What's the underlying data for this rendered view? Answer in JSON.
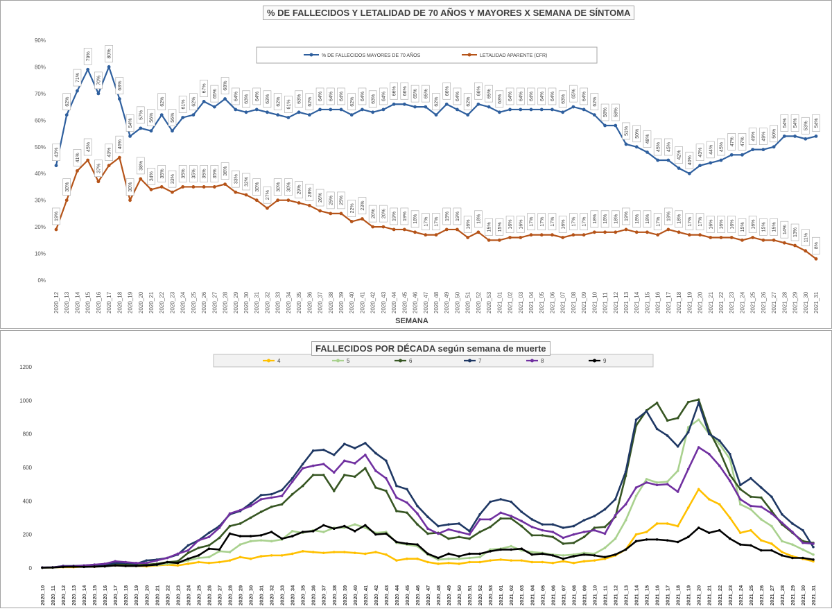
{
  "colors": {
    "pct_series": "#2e5f9e",
    "cfr_series": "#b55318",
    "d4": "#ffc000",
    "d5": "#a9d18e",
    "d6": "#375623",
    "d7": "#1f3864",
    "d8": "#7030a0",
    "d9": "#000000"
  },
  "chart_data": [
    {
      "type": "line",
      "title": "% DE FALLECIDOS Y LETALIDAD DE 70 AÑOS Y MAYORES X SEMANA DE SÍNTOMA",
      "xlabel": "SEMANA",
      "ylabel": "",
      "ylim": [
        0,
        90
      ],
      "yticks": [
        "0%",
        "10%",
        "20%",
        "30%",
        "40%",
        "50%",
        "60%",
        "70%",
        "80%",
        "90%"
      ],
      "grid": false,
      "legend_position": "top",
      "categories": [
        "2020_12",
        "2020_13",
        "2020_14",
        "2020_15",
        "2020_16",
        "2020_17",
        "2020_18",
        "2020_19",
        "2020_20",
        "2020_21",
        "2020_22",
        "2020_23",
        "2020_24",
        "2020_25",
        "2020_26",
        "2020_27",
        "2020_28",
        "2020_29",
        "2020_30",
        "2020_31",
        "2020_32",
        "2020_33",
        "2020_34",
        "2020_35",
        "2020_36",
        "2020_37",
        "2020_38",
        "2020_39",
        "2020_40",
        "2020_41",
        "2020_42",
        "2020_43",
        "2020_44",
        "2020_45",
        "2020_46",
        "2020_47",
        "2020_48",
        "2020_49",
        "2020_50",
        "2020_51",
        "2020_52",
        "2020_53",
        "2021_01",
        "2021_02",
        "2021_03",
        "2021_04",
        "2021_05",
        "2021_06",
        "2021_07",
        "2021_08",
        "2021_09",
        "2021_10",
        "2021_11",
        "2021_12",
        "2021_13",
        "2021_14",
        "2021_15",
        "2021_16",
        "2021_17",
        "2021_18",
        "2021_19",
        "2021_20",
        "2021_21",
        "2021_22",
        "2021_23",
        "2021_24",
        "2021_25",
        "2021_26",
        "2021_27",
        "2021_28",
        "2021_29",
        "2021_30",
        "2021_31"
      ],
      "series": [
        {
          "name": "% DE FALLECIDOS MAYORES DE 70 AÑOS",
          "values": [
            43,
            62,
            71,
            79,
            70,
            80,
            68,
            54,
            57,
            56,
            62,
            56,
            61,
            62,
            67,
            65,
            68,
            64,
            63,
            64,
            63,
            62,
            61,
            63,
            62,
            64,
            64,
            64,
            62,
            64,
            63,
            64,
            66,
            66,
            65,
            65,
            62,
            66,
            64,
            62,
            66,
            65,
            63,
            64,
            64,
            64,
            64,
            64,
            63,
            65,
            64,
            62,
            58,
            58,
            51,
            50,
            48,
            45,
            45,
            42,
            40,
            43,
            44,
            45,
            47,
            47,
            49,
            49,
            50,
            54,
            54,
            53,
            54
          ],
          "labels": [
            "43%",
            "62%",
            "71%",
            "79%",
            "70%",
            "80%",
            "68%",
            "54%",
            "57%",
            "56%",
            "62%",
            "56%",
            "61%",
            "62%",
            "67%",
            "65%",
            "68%",
            "64%",
            "63%",
            "64%",
            "63%",
            "62%",
            "61%",
            "63%",
            "62%",
            "64%",
            "64%",
            "64%",
            "62%",
            "64%",
            "63%",
            "64%",
            "66%",
            "66%",
            "65%",
            "65%",
            "62%",
            "66%",
            "64%",
            "62%",
            "66%",
            "65%",
            "63%",
            "64%",
            "64%",
            "64%",
            "64%",
            "64%",
            "63%",
            "65%",
            "64%",
            "62%",
            "58%",
            "58%",
            "51%",
            "50%",
            "48%",
            "45%",
            "45%",
            "42%",
            "40%",
            "43%",
            "44%",
            "45%",
            "47%",
            "47%",
            "49%",
            "49%",
            "50%",
            "54%",
            "54%",
            "53%",
            "54%"
          ]
        },
        {
          "name": "LETALIDAD APARENTE (CFR)",
          "values": [
            19,
            30,
            41,
            45,
            37,
            43,
            46,
            30,
            38,
            34,
            35,
            33,
            35,
            35,
            35,
            35,
            36,
            33,
            32,
            30,
            27,
            30,
            30,
            29,
            28,
            26,
            25,
            25,
            22,
            23,
            20,
            20,
            19,
            19,
            18,
            17,
            17,
            19,
            19,
            16,
            18,
            15,
            15,
            16,
            16,
            17,
            17,
            17,
            16,
            17,
            17,
            18,
            18,
            18,
            19,
            18,
            18,
            17,
            19,
            18,
            17,
            17,
            16,
            16,
            16,
            15,
            16,
            15,
            15,
            14,
            13,
            11,
            8
          ],
          "labels": [
            "19%",
            "30%",
            "41%",
            "45%",
            "37%",
            "43%",
            "46%",
            "30%",
            "38%",
            "34%",
            "35%",
            "33%",
            "35%",
            "35%",
            "35%",
            "35%",
            "36%",
            "33%",
            "32%",
            "30%",
            "27%",
            "30%",
            "30%",
            "29%",
            "28%",
            "26%",
            "25%",
            "25%",
            "22%",
            "23%",
            "20%",
            "20%",
            "19%",
            "19%",
            "18%",
            "17%",
            "17%",
            "19%",
            "19%",
            "16%",
            "18%",
            "15%",
            "15%",
            "16%",
            "16%",
            "17%",
            "17%",
            "17%",
            "16%",
            "17%",
            "17%",
            "18%",
            "18%",
            "18%",
            "19%",
            "18%",
            "18%",
            "17%",
            "19%",
            "18%",
            "17%",
            "17%",
            "16%",
            "16%",
            "16%",
            "15%",
            "16%",
            "15%",
            "15%",
            "14%",
            "13%",
            "11%",
            "8%"
          ]
        }
      ]
    },
    {
      "type": "line",
      "title": "FALLECIDOS POR DÉCADA según semana de muerte",
      "xlabel": "",
      "ylabel": "",
      "ylim": [
        0,
        1200
      ],
      "yticks": [
        "0",
        "200",
        "400",
        "600",
        "800",
        "1000",
        "1200"
      ],
      "grid": false,
      "legend_position": "top",
      "categories": [
        "2020_10",
        "2020_11",
        "2020_12",
        "2020_13",
        "2020_14",
        "2020_15",
        "2020_16",
        "2020_17",
        "2020_18",
        "2020_19",
        "2020_20",
        "2020_21",
        "2020_22",
        "2020_23",
        "2020_24",
        "2020_25",
        "2020_26",
        "2020_27",
        "2020_28",
        "2020_29",
        "2020_30",
        "2020_31",
        "2020_32",
        "2020_33",
        "2020_34",
        "2020_35",
        "2020_36",
        "2020_37",
        "2020_38",
        "2020_39",
        "2020_40",
        "2020_41",
        "2020_42",
        "2020_43",
        "2020_44",
        "2020_45",
        "2020_46",
        "2020_47",
        "2020_48",
        "2020_49",
        "2020_50",
        "2020_51",
        "2020_52",
        "2020_53",
        "2021_01",
        "2021_02",
        "2021_03",
        "2021_04",
        "2021_05",
        "2021_06",
        "2021_07",
        "2021_08",
        "2021_09",
        "2021_10",
        "2021_11",
        "2021_12",
        "2021_13",
        "2021_14",
        "2021_15",
        "2021_16",
        "2021_17",
        "2021_18",
        "2021_19",
        "2021_20",
        "2021_21",
        "2021_22",
        "2021_23",
        "2021_24",
        "2021_25",
        "2021_26",
        "2021_27",
        "2021_28",
        "2021_29",
        "2021_30",
        "2021_31"
      ],
      "series": [
        {
          "name": "4",
          "values": [
            2,
            3,
            5,
            5,
            8,
            8,
            12,
            15,
            13,
            12,
            10,
            15,
            20,
            15,
            25,
            35,
            30,
            35,
            45,
            65,
            55,
            70,
            75,
            75,
            85,
            100,
            95,
            90,
            95,
            95,
            90,
            85,
            95,
            80,
            45,
            55,
            55,
            35,
            25,
            30,
            25,
            35,
            35,
            45,
            50,
            45,
            45,
            35,
            35,
            30,
            40,
            30,
            40,
            45,
            55,
            75,
            110,
            200,
            215,
            265,
            265,
            250,
            360,
            470,
            410,
            380,
            300,
            210,
            225,
            165,
            145,
            95,
            70,
            55,
            40
          ]
        },
        {
          "name": "5",
          "values": [
            2,
            3,
            7,
            8,
            10,
            12,
            12,
            18,
            15,
            15,
            15,
            18,
            25,
            30,
            45,
            60,
            65,
            100,
            95,
            140,
            160,
            165,
            160,
            170,
            220,
            210,
            225,
            215,
            240,
            240,
            260,
            240,
            210,
            215,
            150,
            140,
            130,
            80,
            50,
            55,
            55,
            60,
            65,
            110,
            115,
            130,
            105,
            95,
            90,
            80,
            75,
            80,
            90,
            85,
            120,
            175,
            285,
            430,
            530,
            510,
            515,
            580,
            840,
            885,
            800,
            740,
            650,
            380,
            350,
            290,
            250,
            160,
            140,
            110,
            80
          ]
        },
        {
          "name": "6",
          "values": [
            3,
            4,
            10,
            10,
            12,
            15,
            15,
            20,
            20,
            18,
            20,
            25,
            35,
            40,
            90,
            120,
            135,
            180,
            250,
            265,
            300,
            335,
            365,
            380,
            440,
            490,
            555,
            555,
            460,
            555,
            545,
            595,
            480,
            460,
            340,
            330,
            260,
            205,
            210,
            175,
            185,
            175,
            215,
            245,
            295,
            295,
            250,
            195,
            195,
            185,
            145,
            150,
            185,
            240,
            245,
            305,
            550,
            850,
            940,
            985,
            880,
            895,
            990,
            1005,
            820,
            700,
            555,
            470,
            425,
            420,
            340,
            260,
            210,
            160,
            150
          ]
        },
        {
          "name": "7",
          "values": [
            3,
            4,
            12,
            12,
            15,
            20,
            18,
            30,
            30,
            25,
            45,
            50,
            60,
            80,
            135,
            165,
            210,
            250,
            320,
            340,
            385,
            435,
            440,
            465,
            535,
            620,
            700,
            705,
            675,
            740,
            715,
            745,
            685,
            640,
            490,
            470,
            370,
            305,
            250,
            260,
            265,
            220,
            320,
            395,
            410,
            395,
            335,
            290,
            260,
            260,
            240,
            250,
            285,
            310,
            350,
            410,
            575,
            885,
            935,
            830,
            790,
            725,
            810,
            985,
            800,
            760,
            680,
            495,
            535,
            480,
            425,
            320,
            265,
            225,
            125
          ]
        },
        {
          "name": "8",
          "values": [
            3,
            4,
            10,
            10,
            15,
            20,
            25,
            40,
            35,
            30,
            30,
            45,
            60,
            85,
            105,
            165,
            185,
            240,
            325,
            345,
            370,
            410,
            420,
            430,
            515,
            595,
            610,
            620,
            570,
            640,
            625,
            675,
            580,
            535,
            420,
            390,
            325,
            235,
            205,
            230,
            215,
            200,
            290,
            290,
            330,
            310,
            280,
            245,
            225,
            215,
            180,
            200,
            215,
            225,
            205,
            315,
            380,
            480,
            510,
            495,
            500,
            455,
            590,
            720,
            680,
            610,
            520,
            410,
            370,
            365,
            325,
            270,
            215,
            150,
            145
          ]
        },
        {
          "name": "9",
          "values": [
            2,
            3,
            7,
            8,
            7,
            8,
            10,
            15,
            12,
            12,
            15,
            20,
            35,
            30,
            55,
            75,
            115,
            110,
            205,
            190,
            190,
            195,
            215,
            175,
            190,
            215,
            220,
            255,
            235,
            250,
            220,
            255,
            200,
            205,
            155,
            145,
            140,
            85,
            60,
            85,
            70,
            85,
            85,
            100,
            110,
            110,
            115,
            80,
            85,
            75,
            55,
            70,
            80,
            75,
            65,
            80,
            110,
            160,
            170,
            170,
            165,
            155,
            185,
            240,
            210,
            225,
            175,
            140,
            135,
            105,
            105,
            75,
            60,
            60,
            50
          ]
        }
      ]
    }
  ]
}
